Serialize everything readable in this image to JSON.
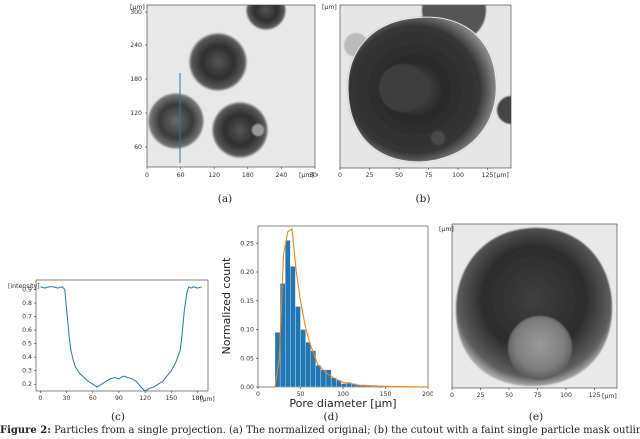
{
  "panels": {
    "a": {
      "label": "(a)",
      "unit": "[μm]",
      "yticks": [
        "0",
        "60",
        "120",
        "180",
        "240",
        "300"
      ],
      "xticks": [
        "0",
        "60",
        "120",
        "180",
        "240",
        "300"
      ],
      "x_unit": "[μm]"
    },
    "b": {
      "label": "(b)",
      "unit": "[μm]",
      "xticks": [
        "0",
        "25",
        "50",
        "75",
        "100",
        "125"
      ],
      "x_unit": "[μm]"
    },
    "c": {
      "label": "(c)",
      "y_unit": "[intensity]",
      "yticks": [
        "0.9",
        "0.8",
        "0.7",
        "0.6",
        "0.5",
        "0.4",
        "0.3",
        "0.2"
      ],
      "xticks": [
        "0",
        "30",
        "60",
        "90",
        "120",
        "150",
        "180"
      ],
      "x_unit": "[μm]"
    },
    "d": {
      "label": "(d)"
    },
    "e": {
      "label": "(e)",
      "unit": "[μm]",
      "xticks": [
        "0",
        "25",
        "50",
        "75",
        "100",
        "125"
      ],
      "x_unit": "[μm]"
    }
  },
  "caption": {
    "prefix": "Figure 2:",
    "text": "Particles from a single projection. (a) The normalized original; (b) the cutout with a faint single particle mask outline"
  },
  "colors": {
    "line": "#1f77b4",
    "bars": "#1f77b4",
    "fit": "#ff7f0e"
  },
  "chart_data": [
    {
      "type": "line",
      "ylabel": "[intensity]",
      "xlabel": "[μm]",
      "xlim": [
        -5,
        192
      ],
      "ylim": [
        0.15,
        0.97
      ],
      "x": [
        0,
        5,
        10,
        15,
        20,
        25,
        28,
        30,
        33,
        35,
        38,
        40,
        45,
        50,
        55,
        60,
        65,
        70,
        75,
        80,
        85,
        90,
        95,
        100,
        105,
        110,
        115,
        120,
        125,
        130,
        135,
        140,
        145,
        150,
        155,
        160,
        162,
        165,
        168,
        170,
        173,
        175,
        180,
        185
      ],
      "y": [
        0.92,
        0.91,
        0.92,
        0.92,
        0.91,
        0.92,
        0.9,
        0.75,
        0.55,
        0.45,
        0.37,
        0.33,
        0.28,
        0.25,
        0.22,
        0.2,
        0.18,
        0.2,
        0.22,
        0.24,
        0.25,
        0.24,
        0.26,
        0.25,
        0.24,
        0.22,
        0.18,
        0.15,
        0.17,
        0.18,
        0.2,
        0.22,
        0.26,
        0.3,
        0.36,
        0.45,
        0.55,
        0.75,
        0.88,
        0.92,
        0.91,
        0.92,
        0.91,
        0.92
      ]
    },
    {
      "type": "bar",
      "xlabel": "Pore diameter [μm]",
      "ylabel": "Normalized count",
      "xlim": [
        0,
        200
      ],
      "ylim": [
        0,
        0.28
      ],
      "xticks": [
        "0",
        "50",
        "100",
        "150",
        "200"
      ],
      "yticks": [
        "0.00",
        "0.05",
        "0.10",
        "0.15",
        "0.20",
        "0.25"
      ],
      "bin_width": 6,
      "bin_starts": [
        20,
        26,
        32,
        38,
        44,
        50,
        56,
        62,
        68,
        74,
        80,
        86,
        92,
        98,
        104,
        110,
        116,
        122,
        128,
        134,
        140,
        146,
        152,
        158,
        164,
        170,
        176,
        182,
        188,
        194
      ],
      "values": [
        0.095,
        0.18,
        0.255,
        0.21,
        0.14,
        0.1,
        0.078,
        0.063,
        0.038,
        0.03,
        0.03,
        0.016,
        0.012,
        0.006,
        0.008,
        0.006,
        0.004,
        0.004,
        0.003,
        0.003,
        0,
        0.002,
        0.001,
        0.001,
        0.001,
        0.001,
        0,
        0,
        0,
        0.001
      ],
      "fit_name": "",
      "fit_x": [
        20,
        25,
        30,
        35,
        40,
        45,
        50,
        55,
        60,
        65,
        70,
        80,
        90,
        100,
        120,
        140,
        160,
        180,
        200
      ],
      "fit_y": [
        0.0,
        0.05,
        0.23,
        0.27,
        0.275,
        0.2,
        0.15,
        0.11,
        0.08,
        0.06,
        0.04,
        0.025,
        0.015,
        0.008,
        0.003,
        0.0015,
        0.0007,
        0.0003,
        0.0001
      ]
    }
  ]
}
